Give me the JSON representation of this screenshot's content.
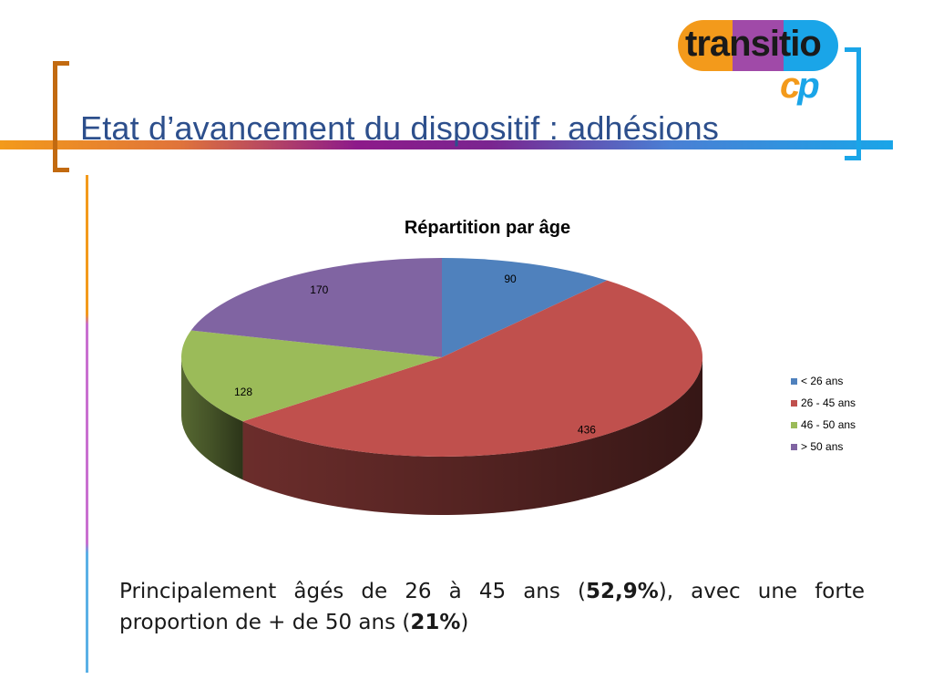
{
  "header": {
    "title": "Etat d’avancement du dispositif : adhésions",
    "logo_text_main": "transitio",
    "logo_text_c": "c",
    "logo_text_p": "p"
  },
  "colors": {
    "title": "#2d4f8c",
    "bracket_left": "#c26a10",
    "bracket_right": "#1aa5e8"
  },
  "chart_data": {
    "type": "pie",
    "title": "Répartition par âge",
    "categories": [
      "< 26 ans",
      "26 - 45 ans",
      "46 - 50 ans",
      "> 50 ans"
    ],
    "values": [
      90,
      436,
      128,
      170
    ],
    "colors": [
      "#4f81bd",
      "#c0504d",
      "#9bbb59",
      "#8064a2"
    ],
    "style": "3d",
    "legend": "right"
  },
  "caption": {
    "part1": "Principalement âgés de 26 à 45 ans (",
    "bold1": "52,9%",
    "part2": "), avec une forte proportion de + de 50 ans (",
    "bold2": "21%",
    "part3": ")"
  }
}
